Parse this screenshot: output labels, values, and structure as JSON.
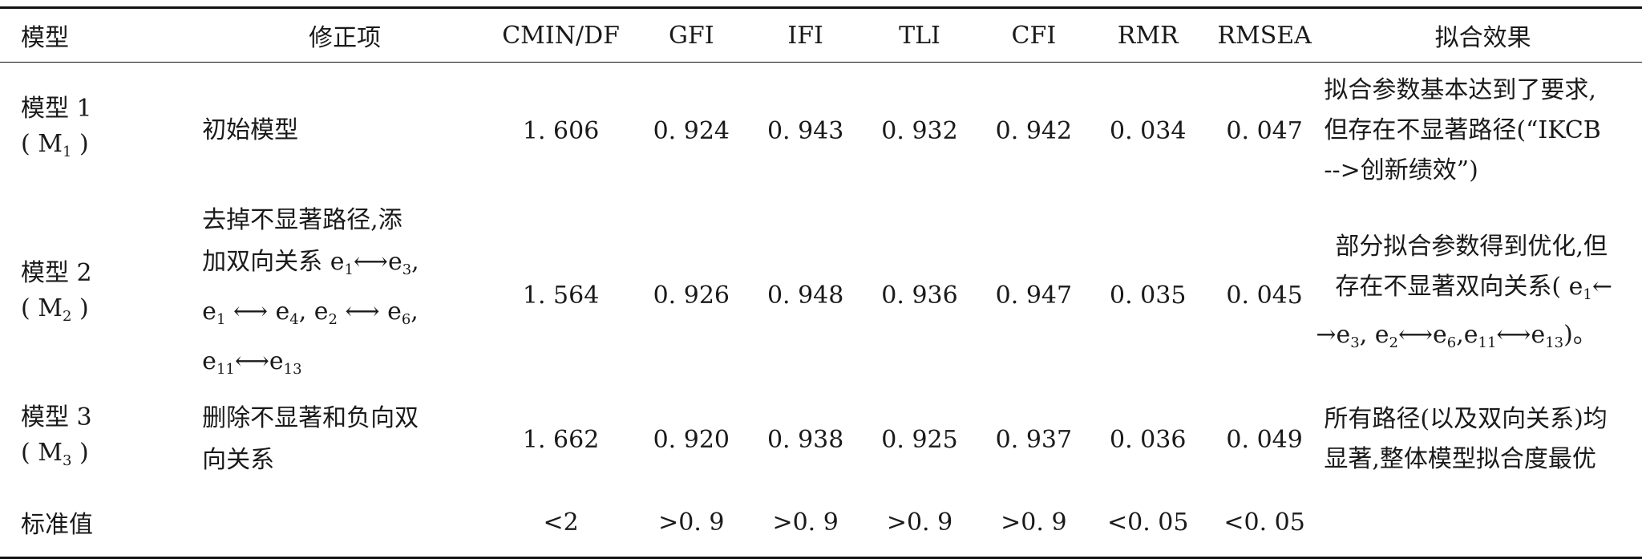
{
  "headers": {
    "model": "模型",
    "modification": "修正项",
    "cmin_df": "CMIN/DF",
    "gfi": "GFI",
    "ifi": "IFI",
    "tli": "TLI",
    "cfi": "CFI",
    "rmr": "RMR",
    "rmsea": "RMSEA",
    "fit_effect": "拟合效果"
  },
  "rows": [
    {
      "model_line1": "模型 1",
      "model_line2_pre": "( M",
      "model_line2_sub": "1",
      "model_line2_post": " )",
      "modification": [
        "初始模型"
      ],
      "cmin_df": "1. 606",
      "gfi": "0. 924",
      "ifi": "0. 943",
      "tli": "0. 932",
      "cfi": "0. 942",
      "rmr": "0. 034",
      "rmsea": "0. 047",
      "fit_effect": [
        "拟合参数基本达到了要求,",
        "但存在不显著路径(“IKCB",
        "-->创新绩效”)"
      ]
    },
    {
      "model_line1": "模型 2",
      "model_line2_pre": "( M",
      "model_line2_sub": "2",
      "model_line2_post": " )",
      "mod_l1": "去掉不显著路径,添",
      "mod_l2": "加双向关系 e",
      "mod_l3": "e",
      "mod_l4": "e",
      "cmin_df": "1. 564",
      "gfi": "0. 926",
      "ifi": "0. 948",
      "tli": "0. 936",
      "cfi": "0. 947",
      "rmr": "0. 035",
      "rmsea": "0. 045",
      "eff_l1": "部分拟合参数得到优化,但",
      "eff_l2": "存在不显著双向关系( e",
      "eff_l3": "→e"
    },
    {
      "model_line1": "模型 3",
      "model_line2_pre": "( M",
      "model_line2_sub": "3",
      "model_line2_post": " )",
      "modification": [
        "删除不显著和负向双",
        "向关系"
      ],
      "cmin_df": "1. 662",
      "gfi": "0. 920",
      "ifi": "0. 938",
      "tli": "0. 925",
      "cfi": "0. 937",
      "rmr": "0. 036",
      "rmsea": "0. 049",
      "fit_effect": [
        "所有路径(以及双向关系)均",
        "显著,整体模型拟合度最优"
      ]
    },
    {
      "model_line1": "标准值",
      "cmin_df": "<2",
      "gfi": ">0. 9",
      "ifi": ">0. 9",
      "tli": ">0. 9",
      "cfi": ">0. 9",
      "rmr": "<0. 05",
      "rmsea": "<0. 05"
    }
  ]
}
